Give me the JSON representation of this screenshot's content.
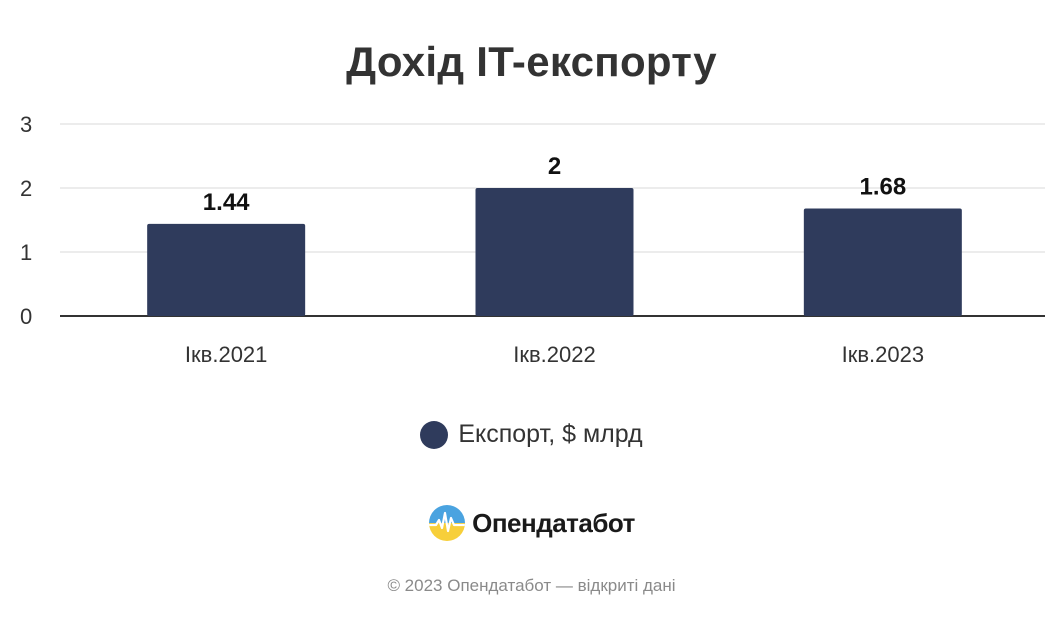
{
  "colors": {
    "bar": "#2f3b5c",
    "grid": "#e6e6e6",
    "axis": "#333333"
  },
  "chart_data": {
    "type": "bar",
    "title": "Дохід IT-експорту",
    "categories": [
      "Ікв.2021",
      "Ікв.2022",
      "Ікв.2023"
    ],
    "series": [
      {
        "name": "Експорт, $ млрд",
        "values": [
          1.44,
          2,
          1.68
        ]
      }
    ],
    "data_labels": [
      "1.44",
      "2",
      "1.68"
    ],
    "ylim": [
      0,
      3
    ],
    "yticks": [
      0,
      1,
      2,
      3
    ],
    "grid": true,
    "legend": "bottom"
  },
  "branding": {
    "logo_icon": "opendatabot-logo-icon",
    "logo_text": "Опендатабот"
  },
  "footer": {
    "text": "© 2023 Опендатабот — відкриті дані"
  }
}
